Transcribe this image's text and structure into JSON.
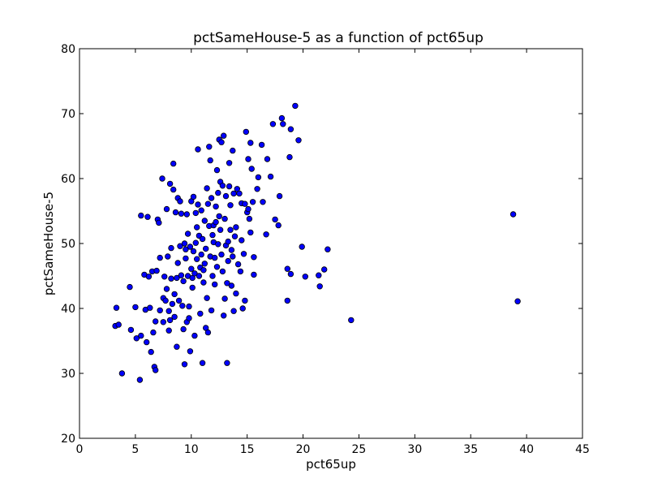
{
  "chart_data": {
    "type": "scatter",
    "title": "pctSameHouse-5 as a function of pct65up",
    "xlabel": "pct65up",
    "ylabel": "pctSameHouse-5",
    "xlim": [
      0,
      45
    ],
    "ylim": [
      20,
      80
    ],
    "xticks": [
      0,
      5,
      10,
      15,
      20,
      25,
      30,
      35,
      40,
      45
    ],
    "yticks": [
      20,
      30,
      40,
      50,
      60,
      70,
      80
    ],
    "grid": false,
    "marker_color": "#0000ff",
    "marker_edge": "#000000",
    "points": [
      [
        3.2,
        37.3
      ],
      [
        3.3,
        40.1
      ],
      [
        3.5,
        37.5
      ],
      [
        3.8,
        30.0
      ],
      [
        4.5,
        43.3
      ],
      [
        4.6,
        36.7
      ],
      [
        5.0,
        40.2
      ],
      [
        5.1,
        35.4
      ],
      [
        5.4,
        29.0
      ],
      [
        5.5,
        35.8
      ],
      [
        5.5,
        54.3
      ],
      [
        5.8,
        45.2
      ],
      [
        5.9,
        39.8
      ],
      [
        6.0,
        34.8
      ],
      [
        6.1,
        54.1
      ],
      [
        6.2,
        44.9
      ],
      [
        6.3,
        40.1
      ],
      [
        6.4,
        33.3
      ],
      [
        6.5,
        45.7
      ],
      [
        6.6,
        36.3
      ],
      [
        6.7,
        31.0
      ],
      [
        6.8,
        30.5
      ],
      [
        6.8,
        38.0
      ],
      [
        6.9,
        45.8
      ],
      [
        7.0,
        53.7
      ],
      [
        7.1,
        53.2
      ],
      [
        7.2,
        39.7
      ],
      [
        7.2,
        47.8
      ],
      [
        7.4,
        60.0
      ],
      [
        7.5,
        37.9
      ],
      [
        7.5,
        41.6
      ],
      [
        7.6,
        44.9
      ],
      [
        7.7,
        41.2
      ],
      [
        7.8,
        55.3
      ],
      [
        7.8,
        43.0
      ],
      [
        7.9,
        48.0
      ],
      [
        8.0,
        36.6
      ],
      [
        8.0,
        39.6
      ],
      [
        8.1,
        59.2
      ],
      [
        8.1,
        38.2
      ],
      [
        8.2,
        44.6
      ],
      [
        8.2,
        49.3
      ],
      [
        8.3,
        40.7
      ],
      [
        8.4,
        62.3
      ],
      [
        8.4,
        58.3
      ],
      [
        8.5,
        42.2
      ],
      [
        8.5,
        38.7
      ],
      [
        8.6,
        54.8
      ],
      [
        8.7,
        44.7
      ],
      [
        8.7,
        34.1
      ],
      [
        8.8,
        57.0
      ],
      [
        8.8,
        47.0
      ],
      [
        8.9,
        41.2
      ],
      [
        9.0,
        56.5
      ],
      [
        9.0,
        49.6
      ],
      [
        9.1,
        54.6
      ],
      [
        9.1,
        45.1
      ],
      [
        9.2,
        40.4
      ],
      [
        9.3,
        36.8
      ],
      [
        9.3,
        44.2
      ],
      [
        9.4,
        50.0
      ],
      [
        9.4,
        31.4
      ],
      [
        9.5,
        47.7
      ],
      [
        9.5,
        49.1
      ],
      [
        9.6,
        54.5
      ],
      [
        9.6,
        37.9
      ],
      [
        9.7,
        51.5
      ],
      [
        9.7,
        45.0
      ],
      [
        9.8,
        40.3
      ],
      [
        9.8,
        38.5
      ],
      [
        9.9,
        49.5
      ],
      [
        9.9,
        33.4
      ],
      [
        10.0,
        56.5
      ],
      [
        10.0,
        46.1
      ],
      [
        10.1,
        44.7
      ],
      [
        10.1,
        43.2
      ],
      [
        10.2,
        57.2
      ],
      [
        10.2,
        48.8
      ],
      [
        10.3,
        35.8
      ],
      [
        10.3,
        45.4
      ],
      [
        10.4,
        54.7
      ],
      [
        10.4,
        50.1
      ],
      [
        10.5,
        52.5
      ],
      [
        10.5,
        47.6
      ],
      [
        10.6,
        56.0
      ],
      [
        10.6,
        64.5
      ],
      [
        10.7,
        51.2
      ],
      [
        10.7,
        45.0
      ],
      [
        10.8,
        46.3
      ],
      [
        10.8,
        39.2
      ],
      [
        10.9,
        55.1
      ],
      [
        10.9,
        48.3
      ],
      [
        11.0,
        50.7
      ],
      [
        11.0,
        31.6
      ],
      [
        11.1,
        45.9
      ],
      [
        11.1,
        44.0
      ],
      [
        11.2,
        53.5
      ],
      [
        11.2,
        46.9
      ],
      [
        11.3,
        37.0
      ],
      [
        11.3,
        49.2
      ],
      [
        11.4,
        58.5
      ],
      [
        11.4,
        41.6
      ],
      [
        11.5,
        56.1
      ],
      [
        11.5,
        36.3
      ],
      [
        11.6,
        64.9
      ],
      [
        11.6,
        52.7
      ],
      [
        11.7,
        62.8
      ],
      [
        11.7,
        48.0
      ],
      [
        11.8,
        57.0
      ],
      [
        11.8,
        39.7
      ],
      [
        11.9,
        51.3
      ],
      [
        11.9,
        45.0
      ],
      [
        12.0,
        50.2
      ],
      [
        12.0,
        52.8
      ],
      [
        12.1,
        47.8
      ],
      [
        12.1,
        43.7
      ],
      [
        12.2,
        53.3
      ],
      [
        12.2,
        55.7
      ],
      [
        12.3,
        46.4
      ],
      [
        12.3,
        61.3
      ],
      [
        12.4,
        57.8
      ],
      [
        12.4,
        49.9
      ],
      [
        12.5,
        66.0
      ],
      [
        12.5,
        54.2
      ],
      [
        12.6,
        59.5
      ],
      [
        12.6,
        52.1
      ],
      [
        12.7,
        65.6
      ],
      [
        12.7,
        48.3
      ],
      [
        12.8,
        58.9
      ],
      [
        12.8,
        45.7
      ],
      [
        12.9,
        66.6
      ],
      [
        12.9,
        38.9
      ],
      [
        13.0,
        53.8
      ],
      [
        13.0,
        41.5
      ],
      [
        13.1,
        57.3
      ],
      [
        13.1,
        49.7
      ],
      [
        13.2,
        43.9
      ],
      [
        13.2,
        31.6
      ],
      [
        13.3,
        50.3
      ],
      [
        13.3,
        47.3
      ],
      [
        13.4,
        58.8
      ],
      [
        13.4,
        62.4
      ],
      [
        13.5,
        52.1
      ],
      [
        13.5,
        55.9
      ],
      [
        13.6,
        49.0
      ],
      [
        13.6,
        43.5
      ],
      [
        13.7,
        64.3
      ],
      [
        13.7,
        48.0
      ],
      [
        13.8,
        57.7
      ],
      [
        13.8,
        39.6
      ],
      [
        13.9,
        51.1
      ],
      [
        14.0,
        52.5
      ],
      [
        14.0,
        42.3
      ],
      [
        14.1,
        58.4
      ],
      [
        14.2,
        46.8
      ],
      [
        14.3,
        57.7
      ],
      [
        14.4,
        45.7
      ],
      [
        14.5,
        50.5
      ],
      [
        14.5,
        56.2
      ],
      [
        14.6,
        40.0
      ],
      [
        14.7,
        48.4
      ],
      [
        14.8,
        56.1
      ],
      [
        14.8,
        41.2
      ],
      [
        14.9,
        67.2
      ],
      [
        15.0,
        54.8
      ],
      [
        15.1,
        63.0
      ],
      [
        15.1,
        55.3
      ],
      [
        15.2,
        53.8
      ],
      [
        15.3,
        65.5
      ],
      [
        15.3,
        51.7
      ],
      [
        15.4,
        61.5
      ],
      [
        15.5,
        56.4
      ],
      [
        15.6,
        47.9
      ],
      [
        15.6,
        45.2
      ],
      [
        15.9,
        58.4
      ],
      [
        16.0,
        60.2
      ],
      [
        16.3,
        65.2
      ],
      [
        16.4,
        56.4
      ],
      [
        16.7,
        51.4
      ],
      [
        16.8,
        63.0
      ],
      [
        17.1,
        60.3
      ],
      [
        17.3,
        68.4
      ],
      [
        17.5,
        53.7
      ],
      [
        17.8,
        52.8
      ],
      [
        17.9,
        57.3
      ],
      [
        18.1,
        69.3
      ],
      [
        18.2,
        68.4
      ],
      [
        18.6,
        46.1
      ],
      [
        18.6,
        41.2
      ],
      [
        18.8,
        63.3
      ],
      [
        18.9,
        67.6
      ],
      [
        18.9,
        45.3
      ],
      [
        19.3,
        71.2
      ],
      [
        19.6,
        65.9
      ],
      [
        19.9,
        49.5
      ],
      [
        20.2,
        44.9
      ],
      [
        21.4,
        45.1
      ],
      [
        21.5,
        43.4
      ],
      [
        21.9,
        46.0
      ],
      [
        22.2,
        49.1
      ],
      [
        24.3,
        38.2
      ],
      [
        38.8,
        54.5
      ],
      [
        39.2,
        41.1
      ]
    ]
  }
}
